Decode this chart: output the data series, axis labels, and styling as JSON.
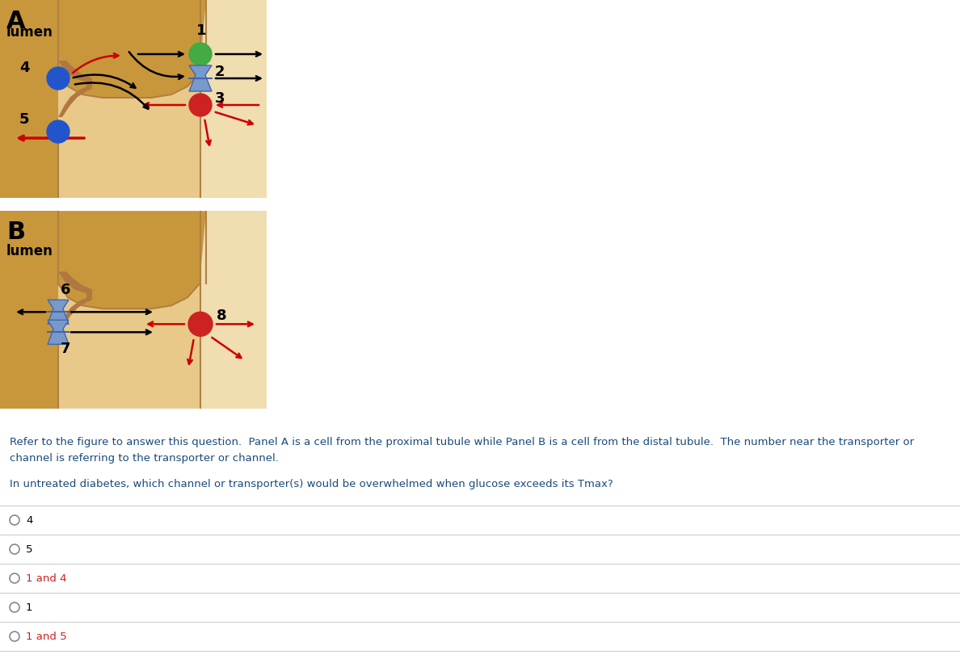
{
  "panel_A_label": "A",
  "panel_B_label": "B",
  "lumen_label": "lumen",
  "bg_color": "#ffffff",
  "cell_fill": "#deb887",
  "lumen_fill": "#c8973c",
  "cell_inner": "#e8c98a",
  "right_space": "#f0ddb0",
  "neck_color": "#b07840",
  "green_circle_color": "#44aa44",
  "blue_circle_color": "#2255cc",
  "red_circle_color": "#cc2222",
  "blue_trans_color": "#7799cc",
  "blue_trans_edge": "#4466aa",
  "arrow_black": "#000000",
  "arrow_red": "#cc0000",
  "text_desc_color": "#1a4a7a",
  "text_q_color": "#1a4a7a",
  "desc_line1": "Refer to the figure to answer this question.  Panel A is a cell from the proximal tubule while Panel B is a cell from the distal tubule.  The number near the transporter or",
  "desc_line2": "channel is referring to the transporter or channel.",
  "question": "In untreated diabetes, which channel or transporter(s) would be overwhelmed when glucose exceeds its Tmax?",
  "options": [
    "4",
    "5",
    "1 and 4",
    "1",
    "1 and 5"
  ],
  "opt_colors": [
    "#000000",
    "#000000",
    "#cc2222",
    "#000000",
    "#cc2222"
  ]
}
